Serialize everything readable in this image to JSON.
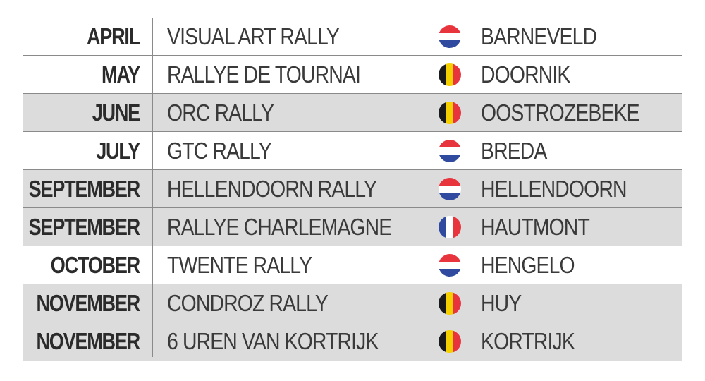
{
  "rows": [
    {
      "month": "APRIL",
      "event": "VISUAL ART RALLY",
      "flag": "netherlands-flag-icon",
      "city": "BARNEVELD",
      "shaded": false
    },
    {
      "month": "MAY",
      "event": "RALLYE DE TOURNAI",
      "flag": "belgium-flag-icon",
      "city": "DOORNIK",
      "shaded": false
    },
    {
      "month": "JUNE",
      "event": "ORC RALLY",
      "flag": "belgium-flag-icon",
      "city": "OOSTROZEBEKE",
      "shaded": true
    },
    {
      "month": "JULY",
      "event": "GTC RALLY",
      "flag": "netherlands-flag-icon",
      "city": "BREDA",
      "shaded": false
    },
    {
      "month": "SEPTEMBER",
      "event": "HELLENDOORN RALLY",
      "flag": "netherlands-flag-icon",
      "city": "HELLENDOORN",
      "shaded": true
    },
    {
      "month": "SEPTEMBER",
      "event": "RALLYE CHARLEMAGNE",
      "flag": "france-flag-icon",
      "city": "HAUTMONT",
      "shaded": true
    },
    {
      "month": "OCTOBER",
      "event": "TWENTE RALLY",
      "flag": "netherlands-flag-icon",
      "city": "HENGELO",
      "shaded": false
    },
    {
      "month": "NOVEMBER",
      "event": "CONDROZ RALLY",
      "flag": "belgium-flag-icon",
      "city": "HUY",
      "shaded": true
    },
    {
      "month": "NOVEMBER",
      "event": "6 UREN VAN KORTRIJK",
      "flag": "belgium-flag-icon",
      "city": "KORTRIJK",
      "shaded": true
    }
  ],
  "flags": {
    "netherlands-flag-icon": {
      "orientation": "horizontal",
      "colors": [
        "#e8343c",
        "#ffffff",
        "#2f4a9e"
      ]
    },
    "belgium-flag-icon": {
      "orientation": "vertical",
      "colors": [
        "#1a1a1a",
        "#f5d000",
        "#e8343c"
      ]
    },
    "france-flag-icon": {
      "orientation": "vertical",
      "colors": [
        "#2f4a9e",
        "#ffffff",
        "#e8343c"
      ]
    }
  },
  "colors": {
    "shaded_row": "#dcdcdc",
    "rule": "#8a8a8a"
  }
}
